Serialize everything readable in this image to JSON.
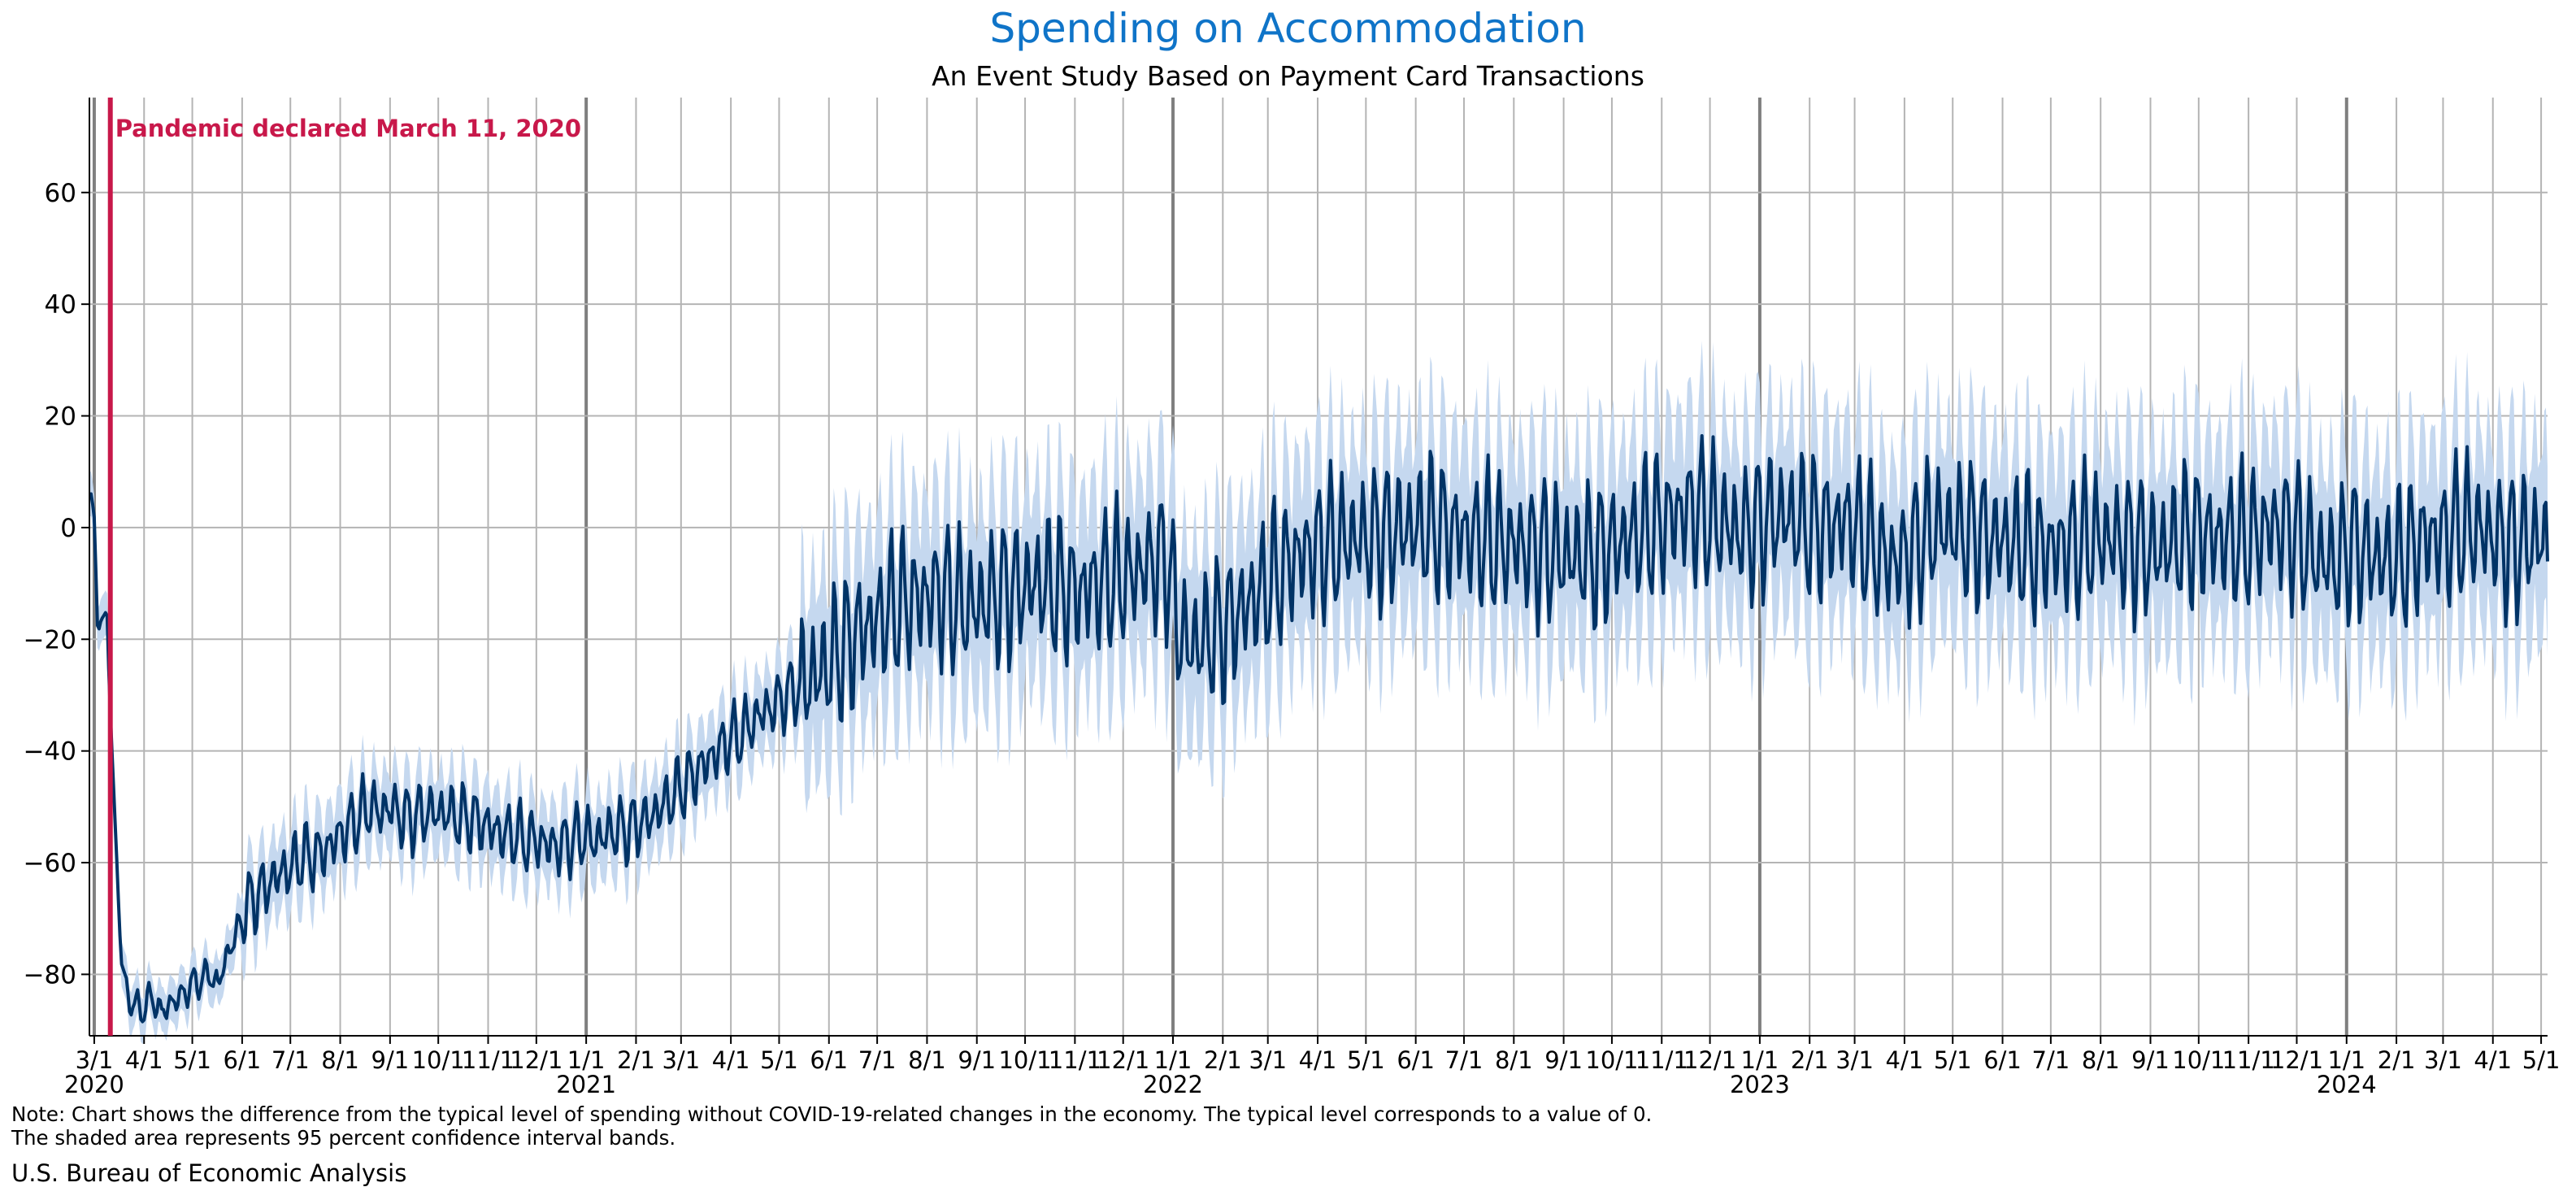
{
  "colors": {
    "line": "#003366",
    "band": "#c5d8ef",
    "title": "#0f74c8",
    "annotation": "#c8184a",
    "grid": "#b4b4b4",
    "year_line": "#7f7f7f",
    "axis": "#000000"
  },
  "notes": {
    "line1": "Note: Chart shows the difference from the typical level of spending without COVID-19-related changes in the economy. The typical level corresponds to a value of 0.",
    "line2": "The shaded area represents 95 percent confidence interval bands."
  },
  "source": "U.S. Bureau of Economic Analysis",
  "chart_data": {
    "type": "line",
    "title": "Spending on Accommodation",
    "subtitle": "An Event Study Based on Payment Card Transactions",
    "xlabel": "",
    "ylabel": "",
    "x_range": [
      "2020-02-27",
      "2024-05-05"
    ],
    "ylim": [
      -91,
      77
    ],
    "yticks": [
      -80,
      -60,
      -40,
      -20,
      0,
      20,
      40,
      60
    ],
    "grid": true,
    "legend": "none",
    "annotation": {
      "date": "2020-03-11",
      "text": "Pandemic declared March 11, 2020"
    },
    "month_ticks": [
      {
        "date": "2020-03-01",
        "label": "3/1",
        "year": "2020"
      },
      {
        "date": "2020-04-01",
        "label": "4/1"
      },
      {
        "date": "2020-05-01",
        "label": "5/1"
      },
      {
        "date": "2020-06-01",
        "label": "6/1"
      },
      {
        "date": "2020-07-01",
        "label": "7/1"
      },
      {
        "date": "2020-08-01",
        "label": "8/1"
      },
      {
        "date": "2020-09-01",
        "label": "9/1"
      },
      {
        "date": "2020-10-01",
        "label": "10/1"
      },
      {
        "date": "2020-11-01",
        "label": "11/1"
      },
      {
        "date": "2020-12-01",
        "label": "12/1"
      },
      {
        "date": "2021-01-01",
        "label": "1/1",
        "year": "2021"
      },
      {
        "date": "2021-02-01",
        "label": "2/1"
      },
      {
        "date": "2021-03-01",
        "label": "3/1"
      },
      {
        "date": "2021-04-01",
        "label": "4/1"
      },
      {
        "date": "2021-05-01",
        "label": "5/1"
      },
      {
        "date": "2021-06-01",
        "label": "6/1"
      },
      {
        "date": "2021-07-01",
        "label": "7/1"
      },
      {
        "date": "2021-08-01",
        "label": "8/1"
      },
      {
        "date": "2021-09-01",
        "label": "9/1"
      },
      {
        "date": "2021-10-01",
        "label": "10/1"
      },
      {
        "date": "2021-11-01",
        "label": "11/1"
      },
      {
        "date": "2021-12-01",
        "label": "12/1"
      },
      {
        "date": "2022-01-01",
        "label": "1/1",
        "year": "2022"
      },
      {
        "date": "2022-02-01",
        "label": "2/1"
      },
      {
        "date": "2022-03-01",
        "label": "3/1"
      },
      {
        "date": "2022-04-01",
        "label": "4/1"
      },
      {
        "date": "2022-05-01",
        "label": "5/1"
      },
      {
        "date": "2022-06-01",
        "label": "6/1"
      },
      {
        "date": "2022-07-01",
        "label": "7/1"
      },
      {
        "date": "2022-08-01",
        "label": "8/1"
      },
      {
        "date": "2022-09-01",
        "label": "9/1"
      },
      {
        "date": "2022-10-01",
        "label": "10/1"
      },
      {
        "date": "2022-11-01",
        "label": "11/1"
      },
      {
        "date": "2022-12-01",
        "label": "12/1"
      },
      {
        "date": "2023-01-01",
        "label": "1/1",
        "year": "2023"
      },
      {
        "date": "2023-02-01",
        "label": "2/1"
      },
      {
        "date": "2023-03-01",
        "label": "3/1"
      },
      {
        "date": "2023-04-01",
        "label": "4/1"
      },
      {
        "date": "2023-05-01",
        "label": "5/1"
      },
      {
        "date": "2023-06-01",
        "label": "6/1"
      },
      {
        "date": "2023-07-01",
        "label": "7/1"
      },
      {
        "date": "2023-08-01",
        "label": "8/1"
      },
      {
        "date": "2023-09-01",
        "label": "9/1"
      },
      {
        "date": "2023-10-01",
        "label": "10/1"
      },
      {
        "date": "2023-11-01",
        "label": "11/1"
      },
      {
        "date": "2023-12-01",
        "label": "12/1"
      },
      {
        "date": "2024-01-01",
        "label": "1/1",
        "year": "2024"
      },
      {
        "date": "2024-02-01",
        "label": "2/1"
      },
      {
        "date": "2024-03-01",
        "label": "3/1"
      },
      {
        "date": "2024-04-01",
        "label": "4/1"
      },
      {
        "date": "2024-05-01",
        "label": "5/1"
      }
    ],
    "series": [
      {
        "type": "line",
        "points": [
          [
            "2020-02-27",
            6
          ],
          [
            "2020-03-01",
            1
          ],
          [
            "2020-03-03",
            -16
          ],
          [
            "2020-03-06",
            -17
          ],
          [
            "2020-03-09",
            -16
          ],
          [
            "2020-03-12",
            -40
          ],
          [
            "2020-03-15",
            -60
          ],
          [
            "2020-03-18",
            -78
          ],
          [
            "2020-03-22",
            -84
          ],
          [
            "2020-03-27",
            -86
          ],
          [
            "2020-04-01",
            -86
          ],
          [
            "2020-04-06",
            -84
          ],
          [
            "2020-04-12",
            -87
          ],
          [
            "2020-04-18",
            -85
          ],
          [
            "2020-04-24",
            -84
          ],
          [
            "2020-04-30",
            -82
          ],
          [
            "2020-05-06",
            -81
          ],
          [
            "2020-05-12",
            -80
          ],
          [
            "2020-05-17",
            -82
          ],
          [
            "2020-05-22",
            -77
          ],
          [
            "2020-05-28",
            -73
          ],
          [
            "2020-06-03",
            -68
          ],
          [
            "2020-06-10",
            -66
          ],
          [
            "2020-06-17",
            -64
          ],
          [
            "2020-06-24",
            -62
          ],
          [
            "2020-07-01",
            -61
          ],
          [
            "2020-07-08",
            -59
          ],
          [
            "2020-07-15",
            -59
          ],
          [
            "2020-07-22",
            -58
          ],
          [
            "2020-07-29",
            -56
          ],
          [
            "2020-08-05",
            -54
          ],
          [
            "2020-08-12",
            -52
          ],
          [
            "2020-08-19",
            -50
          ],
          [
            "2020-08-26",
            -51
          ],
          [
            "2020-09-02",
            -50
          ],
          [
            "2020-09-09",
            -52
          ],
          [
            "2020-09-16",
            -52
          ],
          [
            "2020-09-23",
            -51
          ],
          [
            "2020-09-30",
            -51
          ],
          [
            "2020-10-07",
            -51
          ],
          [
            "2020-10-14",
            -52
          ],
          [
            "2020-10-21",
            -52
          ],
          [
            "2020-10-28",
            -53
          ],
          [
            "2020-11-04",
            -54
          ],
          [
            "2020-11-11",
            -55
          ],
          [
            "2020-11-18",
            -55
          ],
          [
            "2020-11-25",
            -56
          ],
          [
            "2020-12-02",
            -56
          ],
          [
            "2020-12-09",
            -57
          ],
          [
            "2020-12-16",
            -57
          ],
          [
            "2020-12-23",
            -56
          ],
          [
            "2020-12-30",
            -55
          ],
          [
            "2021-01-06",
            -56
          ],
          [
            "2021-01-13",
            -55
          ],
          [
            "2021-01-20",
            -54
          ],
          [
            "2021-01-27",
            -54
          ],
          [
            "2021-02-03",
            -53
          ],
          [
            "2021-02-10",
            -52
          ],
          [
            "2021-02-17",
            -50
          ],
          [
            "2021-02-24",
            -48
          ],
          [
            "2021-03-03",
            -46
          ],
          [
            "2021-03-10",
            -44
          ],
          [
            "2021-03-17",
            -42
          ],
          [
            "2021-03-24",
            -40
          ],
          [
            "2021-03-31",
            -38
          ],
          [
            "2021-04-07",
            -37
          ],
          [
            "2021-04-14",
            -35
          ],
          [
            "2021-04-21",
            -33
          ],
          [
            "2021-04-28",
            -32
          ],
          [
            "2021-05-05",
            -30
          ],
          [
            "2021-05-12",
            -29
          ],
          [
            "2021-05-19",
            -27
          ],
          [
            "2021-05-26",
            -26
          ],
          [
            "2021-06-02",
            -24
          ],
          [
            "2021-06-09",
            -22
          ],
          [
            "2021-06-16",
            -20
          ],
          [
            "2021-06-23",
            -18
          ],
          [
            "2021-06-30",
            -17
          ],
          [
            "2021-07-07",
            -15
          ],
          [
            "2021-07-14",
            -14
          ],
          [
            "2021-07-21",
            -13
          ],
          [
            "2021-07-28",
            -13
          ],
          [
            "2021-08-04",
            -12
          ],
          [
            "2021-08-11",
            -12
          ],
          [
            "2021-08-18",
            -13
          ],
          [
            "2021-08-25",
            -14
          ],
          [
            "2021-09-01",
            -14
          ],
          [
            "2021-09-08",
            -13
          ],
          [
            "2021-09-15",
            -12
          ],
          [
            "2021-09-22",
            -11
          ],
          [
            "2021-09-29",
            -11
          ],
          [
            "2021-10-06",
            -10
          ],
          [
            "2021-10-13",
            -10
          ],
          [
            "2021-10-20",
            -11
          ],
          [
            "2021-10-27",
            -11
          ],
          [
            "2021-11-03",
            -12
          ],
          [
            "2021-11-10",
            -11
          ],
          [
            "2021-11-17",
            -10
          ],
          [
            "2021-11-24",
            -9
          ],
          [
            "2021-12-01",
            -9
          ],
          [
            "2021-12-08",
            -8
          ],
          [
            "2021-12-15",
            -7
          ],
          [
            "2021-12-22",
            -6
          ],
          [
            "2021-12-29",
            -6
          ],
          [
            "2022-01-05",
            -19
          ],
          [
            "2022-01-12",
            -21
          ],
          [
            "2022-01-19",
            -20
          ],
          [
            "2022-01-26",
            -19
          ],
          [
            "2022-02-02",
            -18
          ],
          [
            "2022-02-09",
            -16
          ],
          [
            "2022-02-16",
            -14
          ],
          [
            "2022-02-23",
            -12
          ],
          [
            "2022-03-02",
            -10
          ],
          [
            "2022-03-09",
            -8
          ],
          [
            "2022-03-16",
            -6
          ],
          [
            "2022-03-23",
            -5
          ],
          [
            "2022-03-30",
            -4
          ],
          [
            "2022-04-06",
            -3
          ],
          [
            "2022-04-13",
            -3
          ],
          [
            "2022-04-20",
            -2
          ],
          [
            "2022-04-27",
            -2
          ],
          [
            "2022-05-04",
            -2
          ],
          [
            "2022-05-11",
            -1
          ],
          [
            "2022-05-18",
            -1
          ],
          [
            "2022-05-25",
            0
          ],
          [
            "2022-06-01",
            0
          ],
          [
            "2022-06-08",
            0
          ],
          [
            "2022-06-15",
            0
          ],
          [
            "2022-06-22",
            -1
          ],
          [
            "2022-06-29",
            -1
          ],
          [
            "2022-07-06",
            -2
          ],
          [
            "2022-07-13",
            -2
          ],
          [
            "2022-07-20",
            -3
          ],
          [
            "2022-07-27",
            -3
          ],
          [
            "2022-08-03",
            -3
          ],
          [
            "2022-08-10",
            -4
          ],
          [
            "2022-08-17",
            -4
          ],
          [
            "2022-08-24",
            -4
          ],
          [
            "2022-08-31",
            -5
          ],
          [
            "2022-09-07",
            -5
          ],
          [
            "2022-09-14",
            -5
          ],
          [
            "2022-09-21",
            -5
          ],
          [
            "2022-09-28",
            -4
          ],
          [
            "2022-10-05",
            -3
          ],
          [
            "2022-10-12",
            -2
          ],
          [
            "2022-10-19",
            -1
          ],
          [
            "2022-10-26",
            0
          ],
          [
            "2022-11-02",
            1
          ],
          [
            "2022-11-09",
            2
          ],
          [
            "2022-11-16",
            3
          ],
          [
            "2022-11-23",
            3
          ],
          [
            "2022-11-30",
            2
          ],
          [
            "2022-12-07",
            1
          ],
          [
            "2022-12-14",
            0
          ],
          [
            "2022-12-21",
            -1
          ],
          [
            "2022-12-28",
            0
          ],
          [
            "2023-01-04",
            1
          ],
          [
            "2023-01-11",
            2
          ],
          [
            "2023-01-18",
            2
          ],
          [
            "2023-01-25",
            1
          ],
          [
            "2023-02-01",
            0
          ],
          [
            "2023-02-08",
            0
          ],
          [
            "2023-02-15",
            0
          ],
          [
            "2023-02-22",
            1
          ],
          [
            "2023-03-01",
            0
          ],
          [
            "2023-03-08",
            -2
          ],
          [
            "2023-03-15",
            -4
          ],
          [
            "2023-03-22",
            -6
          ],
          [
            "2023-03-29",
            -6
          ],
          [
            "2023-04-05",
            -4
          ],
          [
            "2023-04-12",
            -2
          ],
          [
            "2023-04-19",
            0
          ],
          [
            "2023-04-26",
            0
          ],
          [
            "2023-05-03",
            0
          ],
          [
            "2023-05-10",
            -1
          ],
          [
            "2023-05-17",
            -1
          ],
          [
            "2023-05-24",
            -2
          ],
          [
            "2023-05-31",
            -2
          ],
          [
            "2023-06-07",
            -3
          ],
          [
            "2023-06-14",
            -3
          ],
          [
            "2023-06-21",
            -4
          ],
          [
            "2023-06-28",
            -4
          ],
          [
            "2023-07-05",
            -4
          ],
          [
            "2023-07-12",
            -3
          ],
          [
            "2023-07-19",
            -3
          ],
          [
            "2023-07-26",
            -2
          ],
          [
            "2023-08-02",
            -2
          ],
          [
            "2023-08-09",
            -2
          ],
          [
            "2023-08-16",
            -3
          ],
          [
            "2023-08-23",
            -3
          ],
          [
            "2023-08-30",
            -4
          ],
          [
            "2023-09-06",
            -4
          ],
          [
            "2023-09-13",
            -3
          ],
          [
            "2023-09-20",
            -2
          ],
          [
            "2023-09-27",
            -1
          ],
          [
            "2023-10-04",
            -1
          ],
          [
            "2023-10-11",
            -2
          ],
          [
            "2023-10-18",
            -2
          ],
          [
            "2023-10-25",
            -2
          ],
          [
            "2023-11-01",
            -2
          ],
          [
            "2023-11-08",
            -1
          ],
          [
            "2023-11-15",
            0
          ],
          [
            "2023-11-22",
            0
          ],
          [
            "2023-11-29",
            -1
          ],
          [
            "2023-12-06",
            -3
          ],
          [
            "2023-12-13",
            -5
          ],
          [
            "2023-12-20",
            -6
          ],
          [
            "2023-12-27",
            -6
          ],
          [
            "2024-01-03",
            -3
          ],
          [
            "2024-01-10",
            -4
          ],
          [
            "2024-01-17",
            -5
          ],
          [
            "2024-01-24",
            -6
          ],
          [
            "2024-01-31",
            -6
          ],
          [
            "2024-02-07",
            -5
          ],
          [
            "2024-02-14",
            -3
          ],
          [
            "2024-02-21",
            -2
          ],
          [
            "2024-02-28",
            -2
          ],
          [
            "2024-03-06",
            -1
          ],
          [
            "2024-03-13",
            0
          ],
          [
            "2024-03-20",
            0
          ],
          [
            "2024-03-27",
            -1
          ],
          [
            "2024-04-03",
            -2
          ],
          [
            "2024-04-10",
            -3
          ],
          [
            "2024-04-17",
            -3
          ],
          [
            "2024-04-24",
            -2
          ],
          [
            "2024-05-01",
            -2
          ],
          [
            "2024-05-05",
            -4
          ]
        ]
      }
    ]
  }
}
